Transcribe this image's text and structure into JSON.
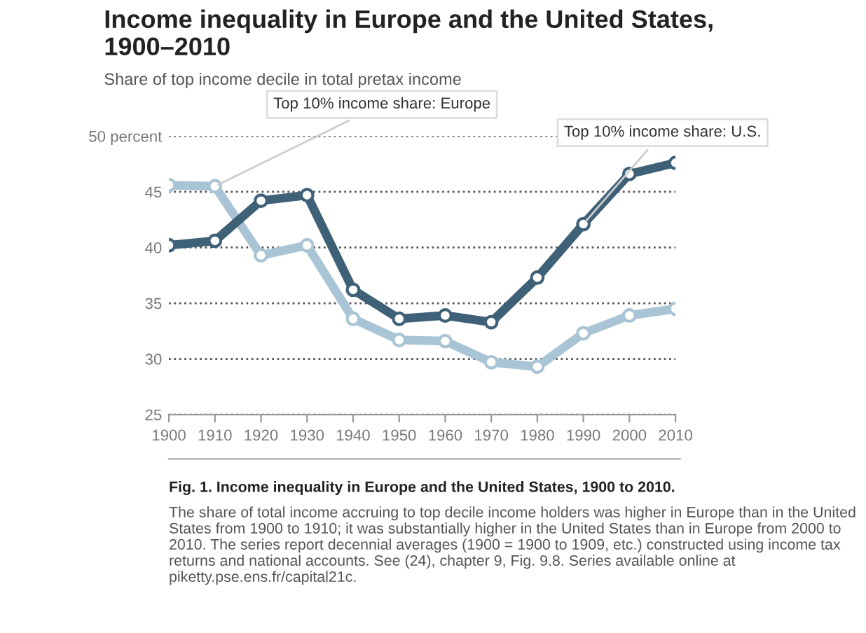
{
  "chart_data": {
    "type": "line",
    "title": "Income inequality in Europe and the United States,\n1900–2010",
    "subtitle": "Share of top income decile in total pretax income",
    "x": [
      1900,
      1910,
      1920,
      1930,
      1940,
      1950,
      1960,
      1970,
      1980,
      1990,
      2000,
      2010
    ],
    "series": [
      {
        "name": "Top 10% income share: Europe",
        "color": "#a9c4d4",
        "values": [
          45.6,
          45.5,
          39.3,
          40.2,
          33.6,
          31.7,
          31.6,
          29.7,
          29.3,
          32.3,
          33.9,
          34.5
        ]
      },
      {
        "name": "Top 10% income share: U.S.",
        "color": "#3f6178",
        "values": [
          40.2,
          40.6,
          44.2,
          44.7,
          36.2,
          33.6,
          33.9,
          33.3,
          37.3,
          42.1,
          46.6,
          47.6
        ]
      }
    ],
    "xlim": [
      1900,
      2010
    ],
    "xticks": [
      1900,
      1910,
      1920,
      1930,
      1940,
      1950,
      1960,
      1970,
      1980,
      1990,
      2000,
      2010
    ],
    "ylim": [
      25,
      50
    ],
    "yticks": [
      25,
      30,
      35,
      40,
      {
        "value": 50,
        "label": "50 percent"
      },
      45
    ],
    "grid": "y",
    "marker": "circle",
    "line_style": "solid",
    "annotations": [
      "Fig. 1. Income inequality in Europe and the United States, 1900 to 2010.",
      "The share of total income accruing to top decile income holders was higher in Europe than in the United States from 1900 to 1910; it was substantially higher in the United States than in Europe from 2000 to 2010. The series report decennial averages (1900 = 1900 to 1909, etc.) constructed using income tax returns and national accounts. See (24), chapter 9, Fig. 9.8. Series available online at piketty.pse.ens.fr/capital21c."
    ]
  }
}
